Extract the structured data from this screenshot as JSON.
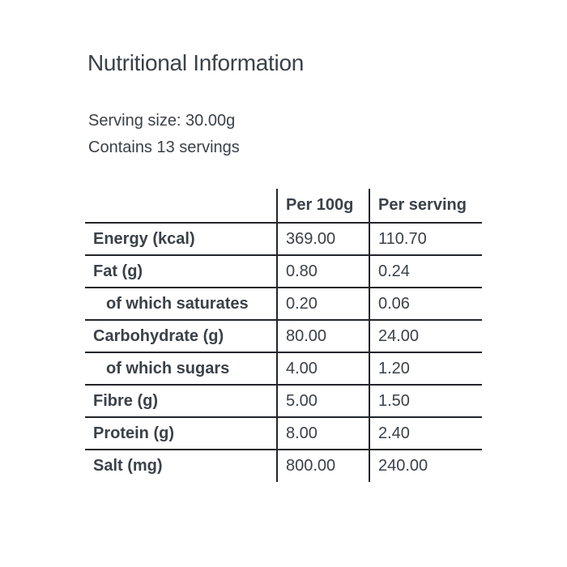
{
  "colors": {
    "text": "#3a4149",
    "line": "#212529",
    "background": "#ffffff"
  },
  "header": {
    "title": "Nutritional Information"
  },
  "serving": {
    "size": "Serving size: 30.00g",
    "count": "Contains 13 servings"
  },
  "table": {
    "header": {
      "label": "",
      "per_100g": "Per 100g",
      "per_serving": "Per serving"
    },
    "rows": [
      {
        "label": "Energy (kcal)",
        "per_100g": "369.00",
        "per_serving": "110.70"
      },
      {
        "label": "Fat (g)",
        "per_100g": "0.80",
        "per_serving": "0.24"
      },
      {
        "label": "of which saturates",
        "per_100g": "0.20",
        "per_serving": "0.06"
      },
      {
        "label": "Carbohydrate (g)",
        "per_100g": "80.00",
        "per_serving": "24.00"
      },
      {
        "label": "of which sugars",
        "per_100g": "4.00",
        "per_serving": "1.20"
      },
      {
        "label": "Fibre (g)",
        "per_100g": "5.00",
        "per_serving": "1.50"
      },
      {
        "label": "Protein (g)",
        "per_100g": "8.00",
        "per_serving": "2.40"
      },
      {
        "label": "Salt (mg)",
        "per_100g": "800.00",
        "per_serving": "240.00"
      }
    ]
  }
}
